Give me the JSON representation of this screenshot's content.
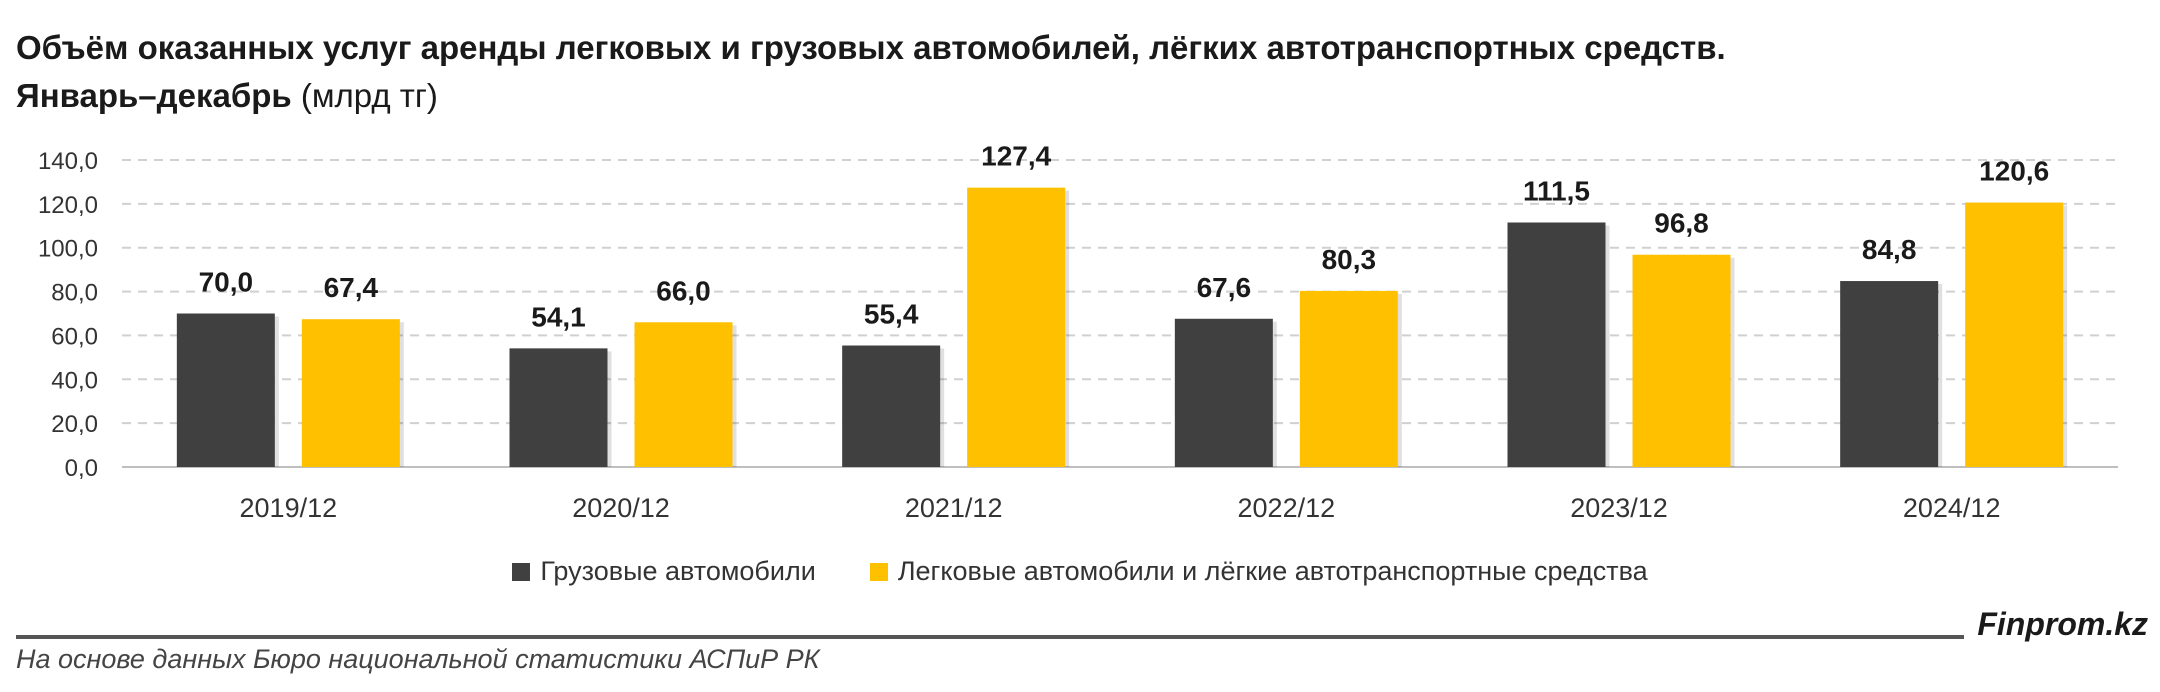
{
  "header": {
    "title": "Объём оказанных услуг аренды легковых и грузовых автомобилей, лёгких автотранспортных средств.",
    "subtitle_bold": "Январь–декабрь",
    "subtitle_unit": "(млрд тг)"
  },
  "colors": {
    "trucks": "#404040",
    "cars": "#FFC000",
    "grid": "#D0D0D0",
    "axis": "#BFBFBF"
  },
  "chart_data": {
    "type": "bar",
    "categories": [
      "2019/12",
      "2020/12",
      "2021/12",
      "2022/12",
      "2023/12",
      "2024/12"
    ],
    "series": [
      {
        "name": "Грузовые автомобили",
        "values": [
          70.0,
          54.1,
          55.4,
          67.6,
          111.5,
          84.8
        ],
        "labels": [
          "70,0",
          "54,1",
          "55,4",
          "67,6",
          "111,5",
          "84,8"
        ]
      },
      {
        "name": "Легковые автомобили и лёгкие автотранспортные средства",
        "values": [
          67.4,
          66.0,
          127.4,
          80.3,
          96.8,
          120.6
        ],
        "labels": [
          "67,4",
          "66,0",
          "127,4",
          "80,3",
          "96,8",
          "120,6"
        ]
      }
    ],
    "yticks": [
      0,
      20,
      40,
      60,
      80,
      100,
      120,
      140
    ],
    "ytick_labels": [
      "0,0",
      "20,0",
      "40,0",
      "60,0",
      "80,0",
      "100,0",
      "120,0",
      "140,0"
    ],
    "ylim": [
      0,
      140
    ],
    "grid": true,
    "legend": "bottom-center"
  },
  "footer": {
    "brand": "Finprom.kz",
    "source": "На основе данных Бюро национальной статистики АСПиР РК"
  }
}
